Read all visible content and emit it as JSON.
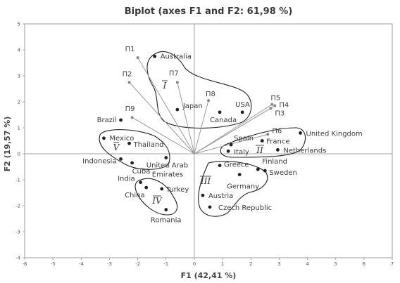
{
  "chart_data": {
    "type": "scatter",
    "title": "Biplot (axes F1 and F2: 61,98 %)",
    "xlabel": "F1 (42,41 %)",
    "ylabel": "F2 (19,57 %)",
    "xlim": [
      -6,
      7
    ],
    "ylim": [
      -4,
      5
    ],
    "xticks": [
      "-6",
      "-5",
      "-4",
      "-3",
      "-2",
      "-1",
      "0",
      "1",
      "2",
      "3",
      "4",
      "5",
      "6",
      "7"
    ],
    "yticks": [
      "-4",
      "-3",
      "-2",
      "-1",
      "0",
      "1",
      "2",
      "3",
      "4",
      "5"
    ],
    "grid": false,
    "observations": [
      {
        "name": "Australia",
        "x": -1.4,
        "y": 3.75
      },
      {
        "name": "Japan",
        "x": -0.6,
        "y": 1.7
      },
      {
        "name": "USA",
        "x": 1.7,
        "y": 1.6
      },
      {
        "name": "Canada",
        "x": 0.9,
        "y": 1.6
      },
      {
        "name": "Brazil",
        "x": -2.6,
        "y": 1.3
      },
      {
        "name": "Mexico",
        "x": -3.2,
        "y": 0.6
      },
      {
        "name": "Thailand",
        "x": -2.3,
        "y": 0.4
      },
      {
        "name": "Indonesia",
        "x": -2.6,
        "y": -0.2
      },
      {
        "name": "Cuba",
        "x": -2.2,
        "y": -0.35
      },
      {
        "name": "United Arab Emirates",
        "x": -1.0,
        "y": -0.15
      },
      {
        "name": "Spain",
        "x": 1.3,
        "y": 0.35
      },
      {
        "name": "France",
        "x": 2.4,
        "y": 0.5
      },
      {
        "name": "Italy",
        "x": 1.2,
        "y": 0.1
      },
      {
        "name": "United Kingdom",
        "x": 3.75,
        "y": 0.8
      },
      {
        "name": "Netherlands",
        "x": 2.95,
        "y": 0.15
      },
      {
        "name": "Greece",
        "x": 0.9,
        "y": -0.45
      },
      {
        "name": "Finland",
        "x": 2.25,
        "y": -0.6
      },
      {
        "name": "Sweden",
        "x": 2.5,
        "y": -0.65
      },
      {
        "name": "Germany",
        "x": 1.6,
        "y": -0.8
      },
      {
        "name": "Austria",
        "x": 0.3,
        "y": -1.6
      },
      {
        "name": "Czech Republic",
        "x": 0.55,
        "y": -2.05
      },
      {
        "name": "India",
        "x": -1.9,
        "y": -1.1
      },
      {
        "name": "China",
        "x": -1.7,
        "y": -1.3
      },
      {
        "name": "Turkey",
        "x": -1.15,
        "y": -1.35
      },
      {
        "name": "Romania",
        "x": -1.0,
        "y": -2.15
      }
    ],
    "variables": [
      {
        "name": "П1",
        "x": -2.0,
        "y": 3.7
      },
      {
        "name": "П2",
        "x": -2.3,
        "y": 2.75
      },
      {
        "name": "П7",
        "x": -0.6,
        "y": 2.75
      },
      {
        "name": "П8",
        "x": 0.5,
        "y": 2.05
      },
      {
        "name": "П9",
        "x": -2.2,
        "y": 1.4
      },
      {
        "name": "П5",
        "x": 2.75,
        "y": 1.9
      },
      {
        "name": "П4",
        "x": 2.85,
        "y": 1.85
      },
      {
        "name": "П3",
        "x": 2.7,
        "y": 1.75
      },
      {
        "name": "П6",
        "x": 2.6,
        "y": 0.75
      }
    ],
    "clusters": [
      "I",
      "II",
      "III",
      "IV",
      "V"
    ]
  }
}
